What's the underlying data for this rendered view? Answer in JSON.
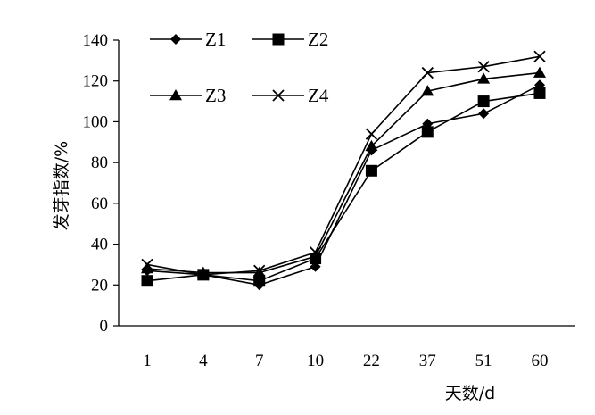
{
  "chart_data": {
    "type": "line",
    "xlabel": "天数/d",
    "ylabel": "发芽指数/%",
    "categories": [
      "1",
      "4",
      "7",
      "10",
      "22",
      "37",
      "51",
      "60"
    ],
    "ylim": [
      0,
      140
    ],
    "yticks": [
      "0",
      "20",
      "40",
      "60",
      "80",
      "100",
      "120",
      "140"
    ],
    "grid": false,
    "legend_position": "top-left",
    "series": [
      {
        "name": "Z1",
        "marker": "diamond",
        "values": [
          27,
          25,
          20,
          29,
          86,
          99,
          104,
          118
        ]
      },
      {
        "name": "Z2",
        "marker": "square",
        "values": [
          22,
          25,
          22,
          33,
          76,
          95,
          110,
          114
        ]
      },
      {
        "name": "Z3",
        "marker": "triangle",
        "values": [
          28,
          26,
          26,
          34,
          88,
          115,
          121,
          124
        ]
      },
      {
        "name": "Z4",
        "marker": "x",
        "values": [
          30,
          25,
          27,
          36,
          94,
          124,
          127,
          132
        ]
      }
    ]
  }
}
